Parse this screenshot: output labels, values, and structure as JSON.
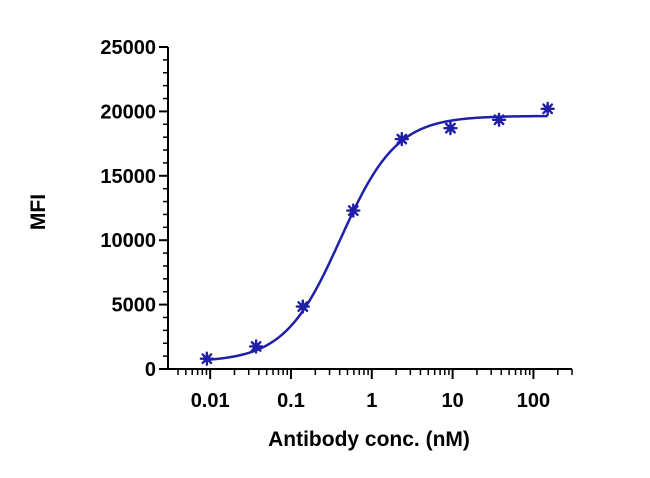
{
  "chart_data": {
    "type": "scatter",
    "title": "",
    "xlabel": "Antibody conc. (nM)",
    "ylabel": "MFI",
    "x_scale": "log",
    "xlim": [
      0.004,
      300
    ],
    "ylim": [
      0,
      25000
    ],
    "x_ticks": [
      0.01,
      0.1,
      1,
      10,
      100
    ],
    "x_tick_labels": [
      "0.01",
      "0.1",
      "1",
      "10",
      "100"
    ],
    "y_ticks": [
      0,
      5000,
      10000,
      15000,
      20000,
      25000
    ],
    "y_tick_labels": [
      "0",
      "5000",
      "10000",
      "15000",
      "20000",
      "25000"
    ],
    "grid": false,
    "legend": "none",
    "color": "#1f1fa8",
    "series": [
      {
        "x": [
          0.0091,
          0.037,
          0.14,
          0.59,
          2.35,
          9.4,
          37.5,
          150
        ],
        "y": [
          800,
          1750,
          4850,
          12300,
          17850,
          18700,
          19350,
          20200
        ]
      }
    ],
    "fit_curve": {
      "model": "4PL",
      "bottom": 550,
      "top": 19650,
      "ec50": 0.41,
      "hill": 1.25
    }
  }
}
